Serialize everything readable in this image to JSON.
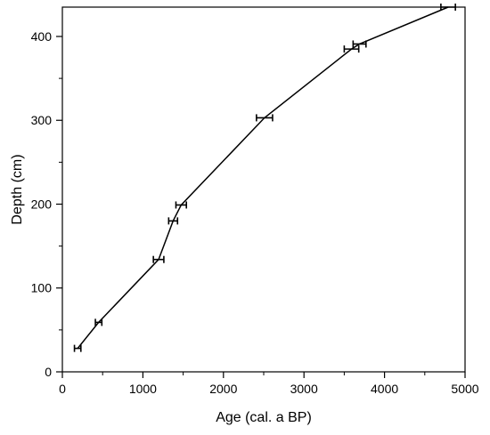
{
  "chart_data": {
    "type": "scatter",
    "title": "",
    "xlabel": "Age (cal. a BP)",
    "ylabel": "Depth (cm)",
    "xlim": [
      0,
      5000
    ],
    "ylim": [
      0,
      435
    ],
    "x_ticks": [
      0,
      1000,
      2000,
      3000,
      4000,
      5000
    ],
    "y_ticks": [
      0,
      100,
      200,
      300,
      400
    ],
    "x_minor_ticks": [
      500,
      1500,
      2500,
      3500,
      4500
    ],
    "y_minor_ticks": [
      50,
      150,
      250,
      350
    ],
    "grid": false,
    "legend": "none",
    "series": [
      {
        "points": [
          {
            "x": 190,
            "y": 28,
            "xerr": [
              150,
              230
            ]
          },
          {
            "x": 450,
            "y": 59,
            "xerr": [
              410,
              490
            ]
          },
          {
            "x": 1195,
            "y": 134,
            "xerr": [
              1130,
              1260
            ]
          },
          {
            "x": 1375,
            "y": 180,
            "xerr": [
              1320,
              1430
            ]
          },
          {
            "x": 1475,
            "y": 199,
            "xerr": [
              1410,
              1540
            ]
          },
          {
            "x": 2510,
            "y": 303,
            "xerr": [
              2410,
              2610
            ]
          },
          {
            "x": 3590,
            "y": 385,
            "xerr": [
              3500,
              3680
            ]
          },
          {
            "x": 3690,
            "y": 391,
            "xerr": [
              3610,
              3770
            ]
          },
          {
            "x": 4790,
            "y": 435,
            "xerr": [
              4700,
              4880
            ]
          }
        ],
        "connected": true,
        "color": "#000000"
      }
    ]
  }
}
